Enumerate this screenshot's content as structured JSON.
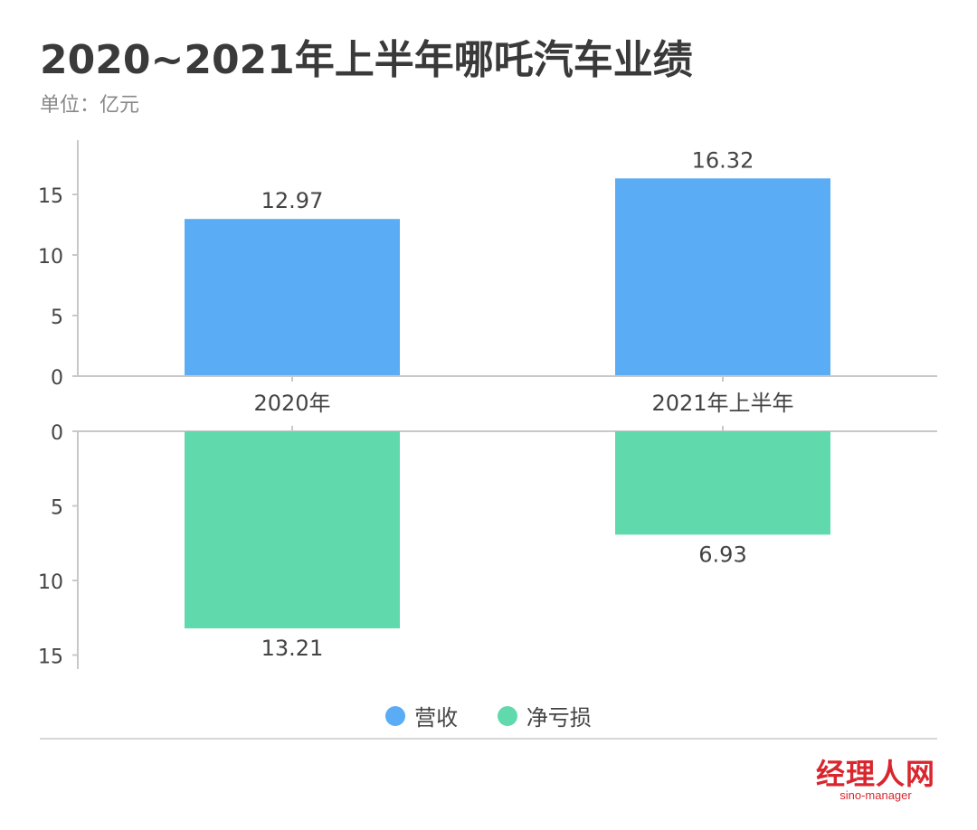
{
  "header": {
    "title": "2020~2021年上半年哪吒汽车业绩",
    "unit": "单位：亿元"
  },
  "colors": {
    "revenue": "#5aacf5",
    "loss": "#60d9ad",
    "axis": "#c8c8c8",
    "text": "#444444",
    "brand": "#d9262e"
  },
  "chart_data": [
    {
      "type": "bar",
      "categories": [
        "2020年",
        "2021年上半年"
      ],
      "series": [
        {
          "name": "营收",
          "values": [
            12.97,
            16.32
          ]
        }
      ],
      "data_labels": [
        "12.97",
        "16.32"
      ],
      "ylim": [
        0,
        19
      ],
      "yticks": [
        0,
        5,
        10,
        15
      ],
      "direction": "up"
    },
    {
      "type": "bar",
      "categories": [
        "2020年",
        "2021年上半年"
      ],
      "series": [
        {
          "name": "净亏损",
          "values": [
            13.21,
            6.93
          ]
        }
      ],
      "data_labels": [
        "13.21",
        "6.93"
      ],
      "ylim": [
        0,
        15.5
      ],
      "yticks": [
        0,
        5,
        10,
        15
      ],
      "direction": "down"
    }
  ],
  "legend": [
    {
      "label": "营收",
      "color": "#5aacf5"
    },
    {
      "label": "净亏损",
      "color": "#60d9ad"
    }
  ],
  "brand": {
    "name": "经理人网",
    "sub": "sino-manager"
  }
}
